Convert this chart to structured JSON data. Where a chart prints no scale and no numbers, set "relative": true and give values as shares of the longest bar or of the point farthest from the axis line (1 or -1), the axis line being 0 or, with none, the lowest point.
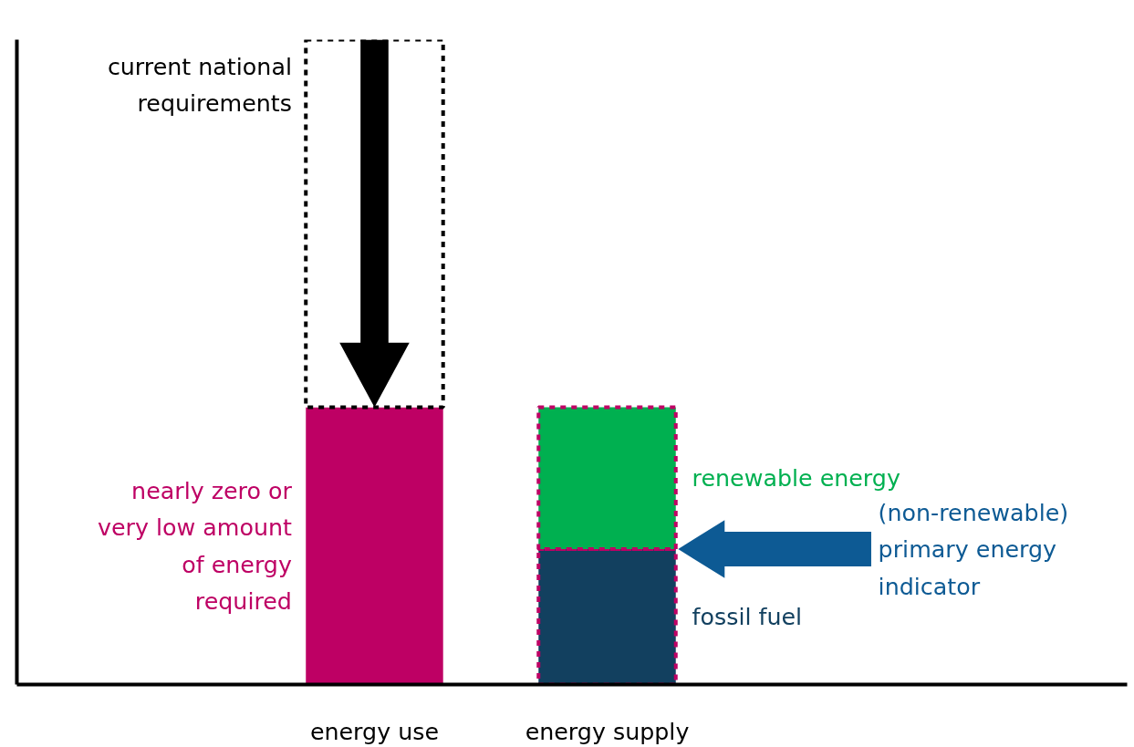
{
  "chart_data": {
    "type": "bar",
    "stacked": true,
    "relative": true,
    "grid": false,
    "categories": [
      "energy use",
      "energy supply"
    ],
    "series": [
      {
        "name": "nearly zero or\nvery low amount\nof energy\nrequired",
        "color": "#be0064",
        "values": [
          0.43,
          null
        ]
      },
      {
        "name": "fossil fuel",
        "color": "#12405f",
        "values": [
          null,
          0.21
        ],
        "line_style": "dashed"
      },
      {
        "name": "renewable energy",
        "color": "#00b050",
        "values": [
          null,
          0.22
        ],
        "line_style": "dashed"
      },
      {
        "name": "current national\nrequirements",
        "color": "#ffffff",
        "values": [
          0.57,
          null
        ],
        "line_style": "dashed"
      }
    ],
    "annotations": [
      "(non-renewable)\nprimary energy\nindicator"
    ]
  }
}
